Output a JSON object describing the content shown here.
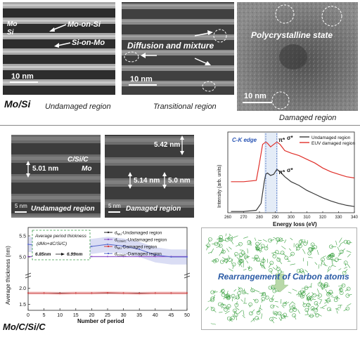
{
  "top": {
    "panel1": {
      "mo": "Mo",
      "si": "Si",
      "mo_on_si": "Mo-on-Si",
      "si_on_mo": "Si-on-Mo",
      "scale": "10 nm",
      "caption": "Undamaged region"
    },
    "panel2": {
      "label": "Diffusion and mixture",
      "scale": "10 nm",
      "caption": "Transitional region"
    },
    "panel3": {
      "label": "Polycrystalline state",
      "scale": "10 nm",
      "caption": "Damaged region"
    },
    "system": "Mo/Si"
  },
  "bottom": {
    "tem1": {
      "csic": "C/Si/C",
      "mo": "Mo",
      "thickness": "5.01 nm",
      "scale": "5 nm",
      "caption": "Undamaged region"
    },
    "tem2": {
      "t1": "5.42 nm",
      "t2": "5.14 nm",
      "t3": "5.0 nm",
      "scale": "5 nm",
      "caption": "Damaged region"
    },
    "carbon_label": "Rearrangement of Carbon atoms",
    "system": "Mo/C/Si/C"
  },
  "xas": {
    "edge": "C-K edge",
    "pi": "π*",
    "sigma": "σ*",
    "ylabel": "Intensity (arb. units)",
    "xlabel": "Energy loss (eV)",
    "xticks": [
      "260",
      "270",
      "280",
      "290",
      "300",
      "310",
      "320",
      "330",
      "340"
    ],
    "legend": [
      "Undamaged region",
      "EUV damaged region"
    ],
    "colors": {
      "undamaged": "#3a3a3a",
      "damaged": "#e0302a"
    }
  },
  "thick": {
    "box_title": "Average period thickness",
    "box_formula": "(dMo+dC/Si/C)",
    "box_from": "6.85nm",
    "box_to": "6.99nm",
    "ylabel": "Average thickness (nm)",
    "xlabel": "Number of period",
    "yticks": [
      "5.5",
      "5.0",
      "2.0",
      "1.5"
    ],
    "xticks": [
      "0",
      "5",
      "10",
      "15",
      "20",
      "25",
      "30",
      "35",
      "40",
      "45",
      "50"
    ],
    "legend": [
      {
        "main": "d",
        "sub": "Mo",
        "rest": "-Undamaged region",
        "color": "#222222"
      },
      {
        "main": "d",
        "sub": "C/Si/C",
        "rest": "-Undamaged region",
        "color": "#8b4fc8"
      },
      {
        "main": "d",
        "sub": "Mo",
        "rest": "-Damaged region",
        "color": "#d93a3a"
      },
      {
        "main": "d",
        "sub": "C/Si/C",
        "rest": "-Damaged region",
        "color": "#5566cc"
      }
    ]
  },
  "chart_data": [
    {
      "type": "line",
      "title": "",
      "xlabel": "Energy loss (eV)",
      "ylabel": "Intensity (arb. units)",
      "xlim": [
        260,
        340
      ],
      "series": [
        {
          "name": "Undamaged region",
          "x": [
            262,
            270,
            278,
            281,
            283,
            284,
            285,
            287,
            289,
            291,
            293,
            296,
            300,
            305,
            310,
            315,
            320,
            325,
            330,
            335,
            340
          ],
          "y": [
            0.02,
            0.02,
            0.04,
            0.15,
            0.5,
            0.62,
            0.64,
            0.6,
            0.62,
            0.7,
            0.66,
            0.58,
            0.5,
            0.44,
            0.36,
            0.3,
            0.24,
            0.19,
            0.15,
            0.12,
            0.1
          ]
        },
        {
          "name": "EUV damaged region",
          "x": [
            262,
            270,
            278,
            280,
            282,
            284,
            285,
            287,
            289,
            291,
            293,
            296,
            300,
            305,
            310,
            315,
            320,
            325,
            330,
            335,
            340
          ],
          "y": [
            0.5,
            0.5,
            0.52,
            0.8,
            1.1,
            1.14,
            1.12,
            1.06,
            1.1,
            1.14,
            1.1,
            1.0,
            0.96,
            0.92,
            0.86,
            0.8,
            0.72,
            0.66,
            0.62,
            0.58,
            0.56
          ]
        }
      ]
    },
    {
      "type": "line",
      "title": "",
      "xlabel": "Number of period",
      "ylabel": "Average thickness (nm)",
      "xlim": [
        0,
        50
      ],
      "series": [
        {
          "name": "dMo-Undamaged region",
          "x": [
            0,
            5,
            10,
            15,
            20,
            25,
            30,
            35,
            40,
            45,
            50
          ],
          "y": [
            1.85,
            1.85,
            1.85,
            1.85,
            1.85,
            1.85,
            1.85,
            1.85,
            1.85,
            1.85,
            1.85
          ]
        },
        {
          "name": "dC/Si/C-Undamaged region",
          "x": [
            0,
            5,
            10,
            15,
            20,
            25,
            30,
            35,
            40,
            45,
            50
          ],
          "y": [
            5.01,
            5.01,
            5.01,
            5.01,
            5.01,
            5.01,
            5.01,
            5.01,
            5.01,
            5.01,
            5.01
          ]
        },
        {
          "name": "dMo-Damaged region",
          "x": [
            0,
            5,
            10,
            15,
            20,
            25,
            30,
            35,
            40,
            45,
            50
          ],
          "y": [
            1.85,
            1.85,
            1.84,
            1.85,
            1.85,
            1.86,
            1.85,
            1.84,
            1.85,
            1.85,
            1.85
          ]
        },
        {
          "name": "dC/Si/C-Damaged region",
          "x": [
            0,
            5,
            10,
            15,
            20,
            25,
            30,
            35,
            40,
            45,
            50
          ],
          "y": [
            5.3,
            5.25,
            5.22,
            5.22,
            5.25,
            5.3,
            5.26,
            5.18,
            5.05,
            5.0,
            5.0
          ]
        }
      ]
    }
  ]
}
